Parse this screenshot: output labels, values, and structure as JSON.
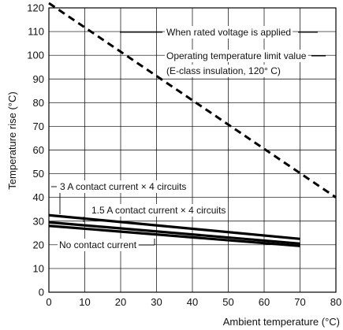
{
  "chart_data": {
    "type": "line",
    "title": "",
    "xlabel": "Ambient temperature (°C)",
    "ylabel": "Temperature rise (°C)",
    "xlim": [
      0,
      80
    ],
    "ylim": [
      0,
      120
    ],
    "xticks": [
      0,
      10,
      20,
      30,
      40,
      50,
      60,
      70,
      80
    ],
    "yticks": [
      0,
      10,
      20,
      30,
      40,
      50,
      60,
      70,
      80,
      90,
      100,
      110,
      120
    ],
    "grid": true,
    "series": [
      {
        "name": "When rated voltage is applied",
        "style": "dashed",
        "x": [
          0,
          80
        ],
        "y": [
          122,
          40
        ]
      },
      {
        "name": "3 A contact current × 4 circuits",
        "style": "solid",
        "x": [
          0,
          70
        ],
        "y": [
          32.5,
          22.5
        ]
      },
      {
        "name": "1.5 A contact current × 4 circuits",
        "style": "solid",
        "x": [
          0,
          70
        ],
        "y": [
          29.5,
          20.5
        ]
      },
      {
        "name": "No contact current",
        "style": "solid",
        "x": [
          0,
          70
        ],
        "y": [
          28,
          19.5
        ]
      }
    ],
    "annotations": [
      {
        "text": "When rated voltage is applied"
      },
      {
        "text": "Operating temperature limit value"
      },
      {
        "text": "(E-class insulation, 120° C)"
      },
      {
        "text": "3 A contact current × 4 circuits"
      },
      {
        "text": "1.5 A contact current × 4 circuits"
      },
      {
        "text": "No contact current"
      }
    ]
  }
}
